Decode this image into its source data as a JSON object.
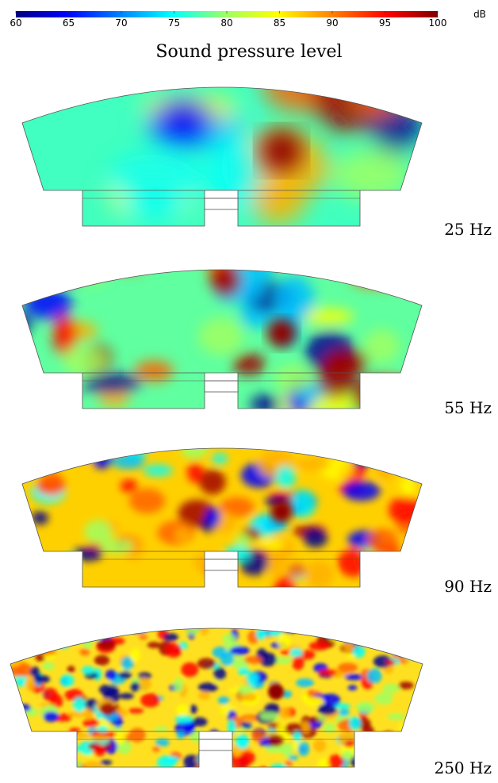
{
  "colorbar": {
    "ticks": [
      60,
      65,
      70,
      75,
      80,
      85,
      90,
      95,
      100
    ],
    "unit": "dB"
  },
  "title": "Sound pressure level",
  "panels": [
    {
      "label": "25 Hz"
    },
    {
      "label": "55 Hz"
    },
    {
      "label": "90 Hz"
    },
    {
      "label": "250 Hz"
    }
  ]
}
